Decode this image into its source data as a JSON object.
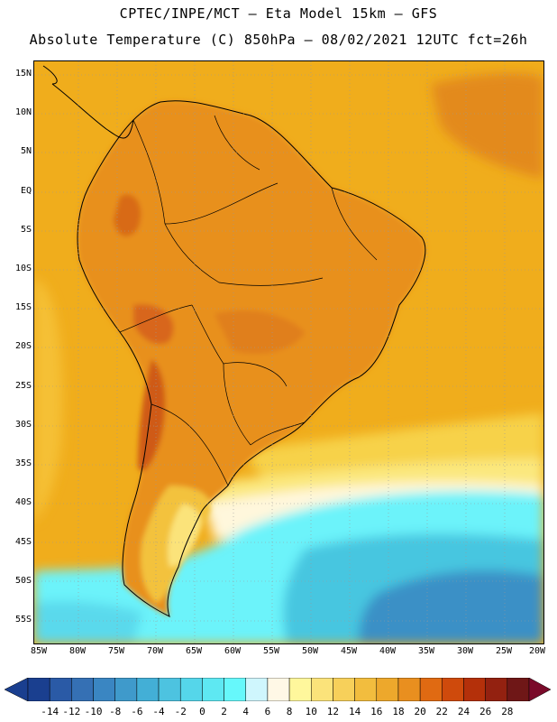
{
  "header": {
    "line1": "CPTEC/INPE/MCT –  Eta Model 15km – GFS",
    "line2": "Absolute Temperature (C) 850hPa – 08/02/2021 12UTC fct=26h"
  },
  "axes": {
    "lat_labels": [
      "15N",
      "10N",
      "5N",
      "EQ",
      "5S",
      "10S",
      "15S",
      "20S",
      "25S",
      "30S",
      "35S",
      "40S",
      "45S",
      "50S",
      "55S"
    ],
    "lon_labels": [
      "85W",
      "80W",
      "75W",
      "70W",
      "65W",
      "60W",
      "55W",
      "50W",
      "45W",
      "40W",
      "35W",
      "30W",
      "25W",
      "20W"
    ],
    "grid": "dotted"
  },
  "colorbar": {
    "labels": [
      "-14",
      "-12",
      "-10",
      "-8",
      "-6",
      "-4",
      "-2",
      "0",
      "2",
      "4",
      "6",
      "8",
      "10",
      "12",
      "14",
      "16",
      "18",
      "20",
      "22",
      "24",
      "26",
      "28"
    ],
    "colors": [
      "#1a3f8f",
      "#2a5aa6",
      "#3570b4",
      "#3a86c2",
      "#3f9acb",
      "#43afd6",
      "#4dc3e0",
      "#55d6ea",
      "#5ee8f2",
      "#66f8fb",
      "#cff6fd",
      "#fff8e6",
      "#fff79c",
      "#fbe37a",
      "#f7d05a",
      "#f2bd3e",
      "#eda82c",
      "#e98f1f",
      "#e06a12",
      "#cf4a0c",
      "#b4300a",
      "#932110",
      "#6f1717"
    ]
  },
  "map": {
    "region": "South America",
    "land_color": "#e9961f",
    "ocean_warm": "#f2b020",
    "cold_color": "#62f0f8"
  }
}
